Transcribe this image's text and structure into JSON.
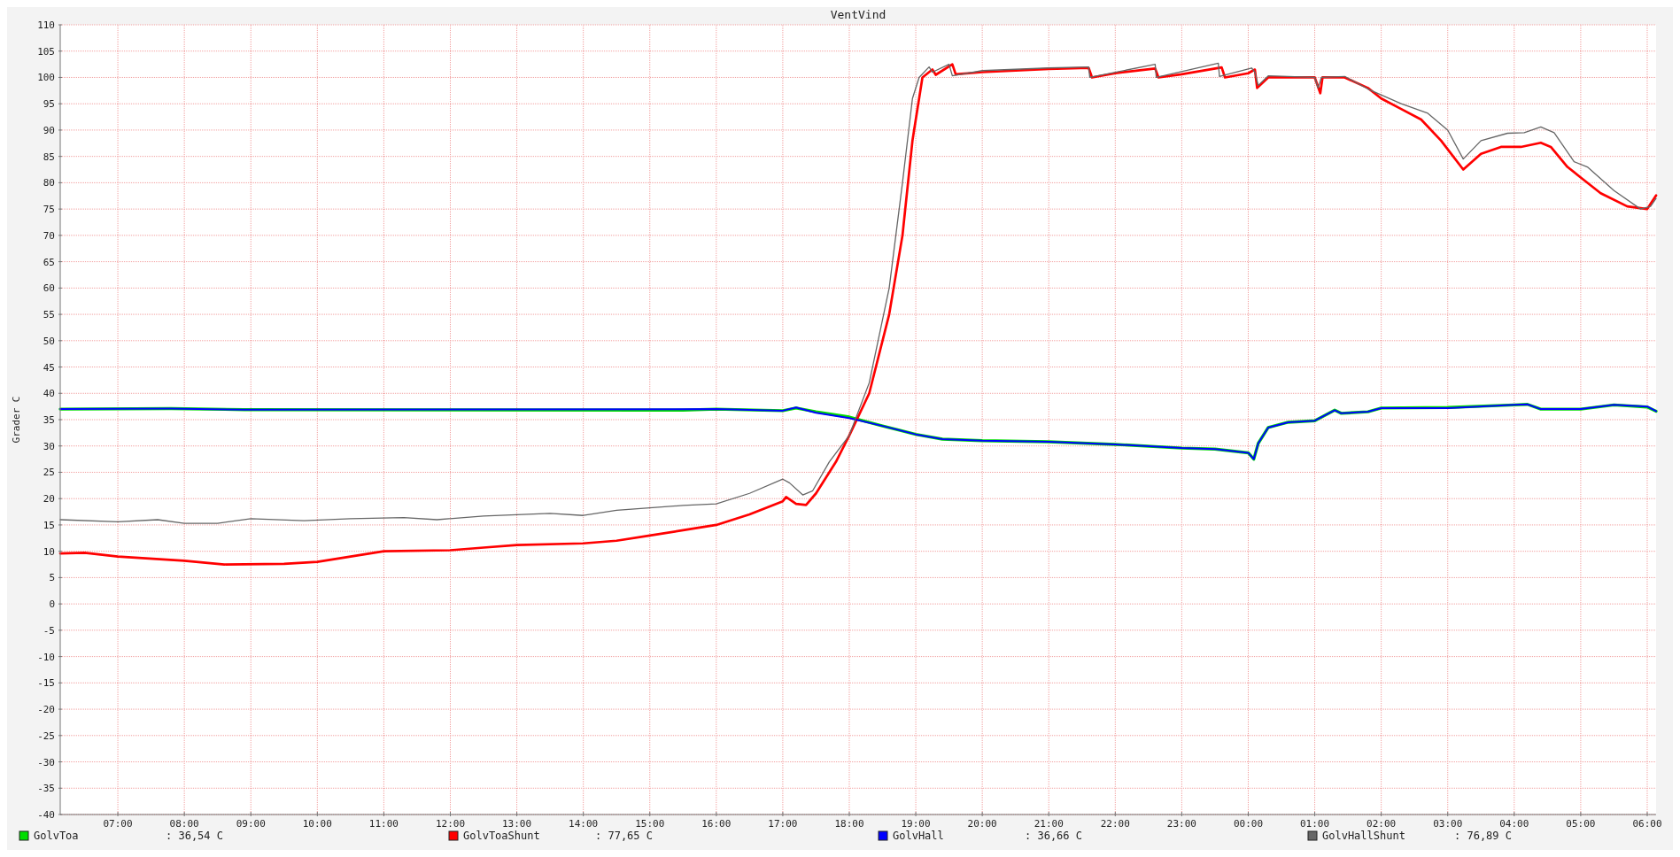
{
  "chart_data": {
    "type": "line",
    "title": "VentVind",
    "ylabel": "Grader C",
    "xlim": [
      "2000-01-01T06:08",
      "2000-01-02T06:08"
    ],
    "ylim": [
      -40,
      110
    ],
    "xticks": [
      {
        "value": "2000-01-01T07:00",
        "label": "07:00"
      },
      {
        "value": "2000-01-01T08:00",
        "label": "08:00"
      },
      {
        "value": "2000-01-01T09:00",
        "label": "09:00"
      },
      {
        "value": "2000-01-01T10:00",
        "label": "10:00"
      },
      {
        "value": "2000-01-01T11:00",
        "label": "11:00"
      },
      {
        "value": "2000-01-01T12:00",
        "label": "12:00"
      },
      {
        "value": "2000-01-01T13:00",
        "label": "13:00"
      },
      {
        "value": "2000-01-01T14:00",
        "label": "14:00"
      },
      {
        "value": "2000-01-01T15:00",
        "label": "15:00"
      },
      {
        "value": "2000-01-01T16:00",
        "label": "16:00"
      },
      {
        "value": "2000-01-01T17:00",
        "label": "17:00"
      },
      {
        "value": "2000-01-01T18:00",
        "label": "18:00"
      },
      {
        "value": "2000-01-01T19:00",
        "label": "19:00"
      },
      {
        "value": "2000-01-01T20:00",
        "label": "20:00"
      },
      {
        "value": "2000-01-01T21:00",
        "label": "21:00"
      },
      {
        "value": "2000-01-01T22:00",
        "label": "22:00"
      },
      {
        "value": "2000-01-01T23:00",
        "label": "23:00"
      },
      {
        "value": "2000-01-02T00:00",
        "label": "00:00"
      },
      {
        "value": "2000-01-02T01:00",
        "label": "01:00"
      },
      {
        "value": "2000-01-02T02:00",
        "label": "02:00"
      },
      {
        "value": "2000-01-02T03:00",
        "label": "03:00"
      },
      {
        "value": "2000-01-02T04:00",
        "label": "04:00"
      },
      {
        "value": "2000-01-02T05:00",
        "label": "05:00"
      },
      {
        "value": "2000-01-02T06:00",
        "label": "06:00"
      }
    ],
    "yticks": [
      -40,
      -35,
      -30,
      -25,
      -20,
      -15,
      -10,
      -5,
      0,
      5,
      10,
      15,
      20,
      25,
      30,
      35,
      40,
      45,
      50,
      55,
      60,
      65,
      70,
      75,
      80,
      85,
      90,
      95,
      100,
      105,
      110
    ],
    "grid": true,
    "legend": "bottom",
    "marker": "none",
    "line_style": "solid",
    "annotations": [
      ": 36,54 C",
      ": 77,65 C",
      ": 36,66 C",
      ": 76,89 C"
    ],
    "series": [
      {
        "name": "GolvToa",
        "color": "#00dd00",
        "x": [
          "2000-01-01T06:08",
          "2000-01-01T07:48",
          "2000-01-01T08:54",
          "2000-01-01T15:00",
          "2000-01-01T15:30",
          "2000-01-01T16:00",
          "2000-01-01T17:00",
          "2000-01-01T17:12",
          "2000-01-01T17:30",
          "2000-01-01T18:00",
          "2000-01-01T18:30",
          "2000-01-01T19:00",
          "2000-01-01T19:24",
          "2000-01-01T20:00",
          "2000-01-01T21:00",
          "2000-01-01T22:00",
          "2000-01-01T23:00",
          "2000-01-01T23:30",
          "2000-01-02T00:00",
          "2000-01-02T00:05",
          "2000-01-02T00:09",
          "2000-01-02T00:18",
          "2000-01-02T00:36",
          "2000-01-02T01:00",
          "2000-01-02T01:18",
          "2000-01-02T01:24",
          "2000-01-02T01:48",
          "2000-01-02T02:00",
          "2000-01-02T03:00",
          "2000-01-02T04:00",
          "2000-01-02T04:12",
          "2000-01-02T04:24",
          "2000-01-02T05:00",
          "2000-01-02T05:30",
          "2000-01-02T06:00",
          "2000-01-02T06:08"
        ],
        "values": [
          37,
          37.1,
          36.9,
          36.8,
          36.8,
          37,
          36.7,
          37.2,
          36.5,
          35.5,
          33.8,
          32.2,
          31.3,
          31,
          30.8,
          30.3,
          29.6,
          29.4,
          28.7,
          27.5,
          30.5,
          33.5,
          34.5,
          34.8,
          36.8,
          36.2,
          36.5,
          37.2,
          37.3,
          37.8,
          37.9,
          37,
          37,
          37.8,
          37.4,
          36.6
        ]
      },
      {
        "name": "GolvToaShunt",
        "color": "#ff0000",
        "x": [
          "2000-01-01T06:08",
          "2000-01-01T06:30",
          "2000-01-01T07:00",
          "2000-01-01T08:00",
          "2000-01-01T08:36",
          "2000-01-01T09:30",
          "2000-01-01T10:00",
          "2000-01-01T10:30",
          "2000-01-01T11:00",
          "2000-01-01T12:00",
          "2000-01-01T12:30",
          "2000-01-01T13:00",
          "2000-01-01T14:00",
          "2000-01-01T14:30",
          "2000-01-01T15:00",
          "2000-01-01T15:30",
          "2000-01-01T16:00",
          "2000-01-01T16:30",
          "2000-01-01T17:00",
          "2000-01-01T17:03",
          "2000-01-01T17:12",
          "2000-01-01T17:21",
          "2000-01-01T17:30",
          "2000-01-01T17:48",
          "2000-01-01T18:00",
          "2000-01-01T18:18",
          "2000-01-01T18:36",
          "2000-01-01T18:48",
          "2000-01-01T18:57",
          "2000-01-01T19:06",
          "2000-01-01T19:15",
          "2000-01-01T19:18",
          "2000-01-01T19:33",
          "2000-01-01T19:36",
          "2000-01-01T20:00",
          "2000-01-01T21:00",
          "2000-01-01T21:36",
          "2000-01-01T21:39",
          "2000-01-01T22:00",
          "2000-01-01T22:36",
          "2000-01-01T22:39",
          "2000-01-01T23:00",
          "2000-01-01T23:36",
          "2000-01-01T23:39",
          "2000-01-02T00:00",
          "2000-01-02T00:06",
          "2000-01-02T00:08",
          "2000-01-02T00:18",
          "2000-01-02T01:00",
          "2000-01-02T01:05",
          "2000-01-02T01:07",
          "2000-01-02T01:27",
          "2000-01-02T01:48",
          "2000-01-02T02:00",
          "2000-01-02T02:18",
          "2000-01-02T02:36",
          "2000-01-02T02:54",
          "2000-01-02T03:14",
          "2000-01-02T03:30",
          "2000-01-02T03:48",
          "2000-01-02T04:06",
          "2000-01-02T04:24",
          "2000-01-02T04:33",
          "2000-01-02T04:48",
          "2000-01-02T05:00",
          "2000-01-02T05:18",
          "2000-01-02T05:42",
          "2000-01-02T06:00",
          "2000-01-02T06:03",
          "2000-01-02T06:08"
        ],
        "values": [
          9.6,
          9.7,
          9,
          8.2,
          7.5,
          7.6,
          8,
          9,
          10,
          10.2,
          10.7,
          11.2,
          11.5,
          12,
          13,
          14,
          15,
          17,
          19.5,
          20.3,
          19,
          18.8,
          21,
          27,
          32,
          40,
          55,
          70,
          88,
          100,
          101.5,
          100.5,
          102.5,
          100.6,
          101,
          101.6,
          101.8,
          100,
          100.8,
          101.7,
          100,
          100.6,
          101.9,
          100,
          100.8,
          101.5,
          98,
          100,
          100,
          97,
          100,
          100,
          98,
          96,
          94,
          92,
          88,
          82.5,
          85.5,
          86.8,
          86.8,
          87.6,
          86.8,
          83,
          81,
          78,
          75.5,
          75,
          76,
          77.6
        ]
      },
      {
        "name": "GolvHall",
        "color": "#0000ff",
        "x": [
          "2000-01-01T06:08",
          "2000-01-01T07:48",
          "2000-01-01T08:54",
          "2000-01-01T16:00",
          "2000-01-01T17:00",
          "2000-01-01T17:12",
          "2000-01-01T17:30",
          "2000-01-01T18:00",
          "2000-01-01T18:30",
          "2000-01-01T19:00",
          "2000-01-01T19:24",
          "2000-01-01T20:00",
          "2000-01-01T21:00",
          "2000-01-01T22:00",
          "2000-01-01T23:00",
          "2000-01-01T23:30",
          "2000-01-02T00:00",
          "2000-01-02T00:05",
          "2000-01-02T00:09",
          "2000-01-02T00:18",
          "2000-01-02T00:36",
          "2000-01-02T01:00",
          "2000-01-02T01:18",
          "2000-01-02T01:24",
          "2000-01-02T01:48",
          "2000-01-02T02:00",
          "2000-01-02T03:00",
          "2000-01-02T04:00",
          "2000-01-02T04:12",
          "2000-01-02T04:24",
          "2000-01-02T05:00",
          "2000-01-02T05:30",
          "2000-01-02T06:00",
          "2000-01-02T06:08"
        ],
        "values": [
          37,
          37.1,
          36.9,
          37,
          36.7,
          37.3,
          36.3,
          35.3,
          33.8,
          32.2,
          31.3,
          31,
          30.8,
          30.3,
          29.6,
          29.4,
          28.7,
          27.5,
          30.5,
          33.5,
          34.5,
          34.8,
          36.8,
          36.2,
          36.5,
          37.2,
          37.2,
          37.8,
          37.9,
          37,
          37,
          37.8,
          37.5,
          36.6
        ]
      },
      {
        "name": "GolvHallShunt",
        "color": "#666666",
        "x": [
          "2000-01-01T06:08",
          "2000-01-01T07:00",
          "2000-01-01T07:36",
          "2000-01-01T08:00",
          "2000-01-01T08:30",
          "2000-01-01T09:00",
          "2000-01-01T09:48",
          "2000-01-01T10:30",
          "2000-01-01T11:18",
          "2000-01-01T11:48",
          "2000-01-01T12:30",
          "2000-01-01T13:30",
          "2000-01-01T14:00",
          "2000-01-01T14:30",
          "2000-01-01T15:30",
          "2000-01-01T16:00",
          "2000-01-01T16:30",
          "2000-01-01T17:00",
          "2000-01-01T17:06",
          "2000-01-01T17:18",
          "2000-01-01T17:27",
          "2000-01-01T17:42",
          "2000-01-01T18:00",
          "2000-01-01T18:18",
          "2000-01-01T18:36",
          "2000-01-01T18:48",
          "2000-01-01T18:57",
          "2000-01-01T19:03",
          "2000-01-01T19:12",
          "2000-01-01T19:15",
          "2000-01-01T19:30",
          "2000-01-01T19:33",
          "2000-01-01T20:00",
          "2000-01-01T21:00",
          "2000-01-01T21:36",
          "2000-01-01T21:37",
          "2000-01-01T22:36",
          "2000-01-01T22:37",
          "2000-01-01T23:33",
          "2000-01-01T23:34",
          "2000-01-02T00:03",
          "2000-01-02T00:06",
          "2000-01-02T00:09",
          "2000-01-02T00:18",
          "2000-01-02T01:00",
          "2000-01-02T01:03",
          "2000-01-02T01:06",
          "2000-01-02T01:27",
          "2000-01-02T01:48",
          "2000-01-02T02:18",
          "2000-01-02T02:42",
          "2000-01-02T03:00",
          "2000-01-02T03:14",
          "2000-01-02T03:30",
          "2000-01-02T03:54",
          "2000-01-02T04:09",
          "2000-01-02T04:24",
          "2000-01-02T04:36",
          "2000-01-02T04:54",
          "2000-01-02T05:06",
          "2000-01-02T05:30",
          "2000-01-02T05:54",
          "2000-01-02T06:03",
          "2000-01-02T06:08"
        ],
        "values": [
          16,
          15.6,
          16,
          15.3,
          15.3,
          16.2,
          15.8,
          16.2,
          16.4,
          16,
          16.7,
          17.2,
          16.8,
          17.8,
          18.7,
          19,
          21,
          23.7,
          23,
          20.7,
          21.5,
          27,
          32,
          42,
          60,
          80,
          96,
          100,
          102,
          101,
          102.5,
          100.3,
          101.3,
          101.8,
          102,
          100,
          102.5,
          100,
          102.7,
          100.2,
          101.8,
          101,
          98.5,
          100.3,
          100,
          98,
          100,
          100.2,
          97.8,
          95,
          93.2,
          90,
          84.5,
          88,
          89.4,
          89.5,
          90.6,
          89.5,
          84,
          83,
          78.5,
          75,
          75.5,
          77
        ]
      }
    ]
  }
}
